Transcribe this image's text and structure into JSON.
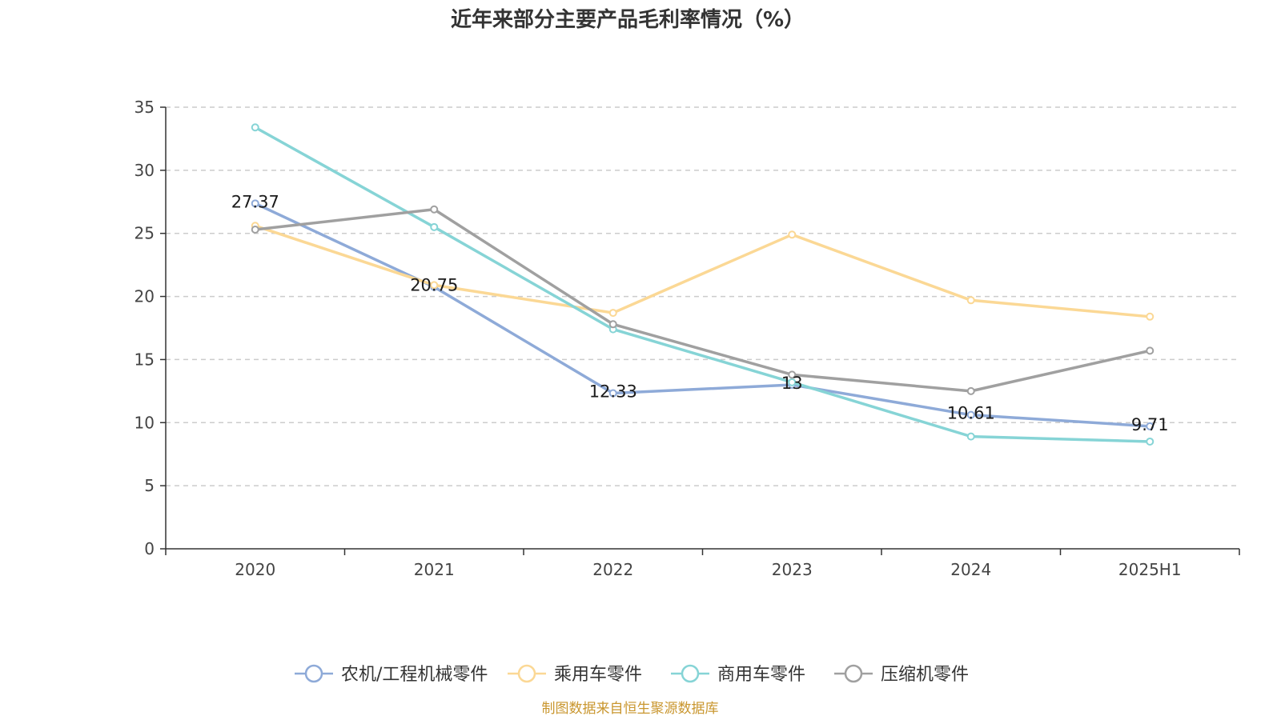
{
  "chart_data": {
    "type": "line",
    "title": "近年来部分主要产品毛利率情况（%）",
    "categories": [
      "2020",
      "2021",
      "2022",
      "2023",
      "2024",
      "2025H1"
    ],
    "ylim": [
      0,
      35
    ],
    "yticks": [
      0,
      5,
      10,
      15,
      20,
      25,
      30,
      35
    ],
    "grid": true,
    "legend_position": "bottom",
    "series": [
      {
        "name": "农机/工程机械零件",
        "color": "#8eaad8",
        "values": [
          27.37,
          20.75,
          12.33,
          13,
          10.61,
          9.71
        ],
        "labels": [
          "27.37",
          "20.75",
          "12.33",
          "13",
          "10.61",
          "9.71"
        ]
      },
      {
        "name": "乘用车零件",
        "color": "#fbd895",
        "values": [
          25.6,
          20.9,
          18.7,
          24.9,
          19.7,
          18.4
        ]
      },
      {
        "name": "商用车零件",
        "color": "#86d4d6",
        "values": [
          33.4,
          25.5,
          17.4,
          13.2,
          8.9,
          8.5
        ]
      },
      {
        "name": "压缩机零件",
        "color": "#a0a0a0",
        "values": [
          25.3,
          26.9,
          17.8,
          13.8,
          12.5,
          15.7
        ]
      }
    ],
    "source": "制图数据来自恒生聚源数据库",
    "source_color": "#c9962e"
  }
}
